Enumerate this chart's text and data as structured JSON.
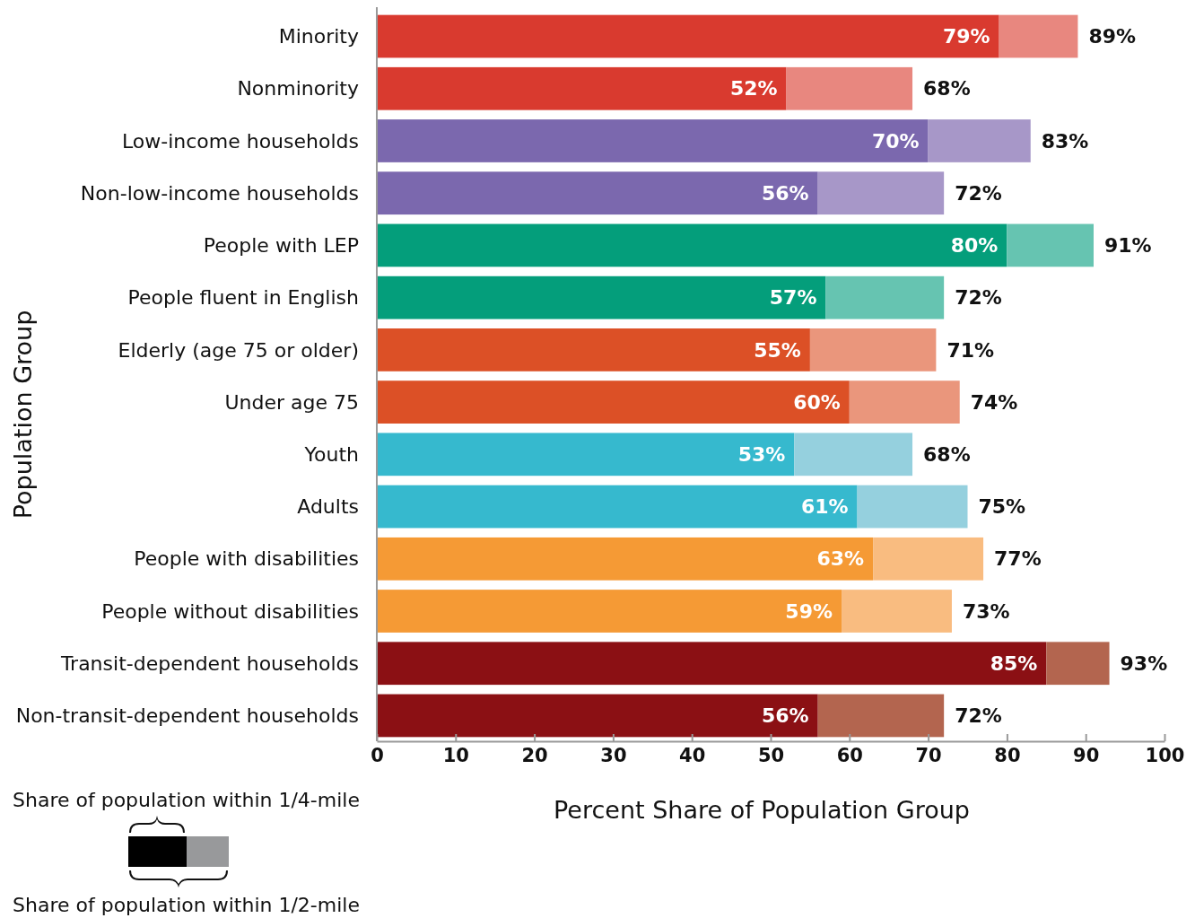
{
  "chart_data": {
    "type": "bar",
    "orientation": "horizontal",
    "stacked": true,
    "categories": [
      "Minority",
      "Nonminority",
      "Low-income households",
      "Non-low-income households",
      "People with LEP",
      "People fluent in English",
      "Elderly (age 75 or older)",
      "Under age 75",
      "Youth",
      "Adults",
      "People with disabilities",
      "People without disabilities",
      "Transit-dependent households",
      "Non-transit-dependent households"
    ],
    "series": [
      {
        "values": [
          79,
          52,
          70,
          56,
          80,
          57,
          55,
          60,
          53,
          61,
          63,
          59,
          85,
          56
        ],
        "colors": [
          "#d93a2f",
          "#d93a2f",
          "#7b68ae",
          "#7b68ae",
          "#049e7b",
          "#049e7b",
          "#dc5026",
          "#dc5026",
          "#36b9ce",
          "#36b9ce",
          "#f59a35",
          "#f59a35",
          "#8b1014",
          "#8b1014"
        ],
        "value_labels": [
          "79%",
          "52%",
          "70%",
          "56%",
          "80%",
          "57%",
          "55%",
          "60%",
          "53%",
          "61%",
          "63%",
          "59%",
          "85%",
          "56%"
        ]
      },
      {
        "values": [
          10,
          16,
          13,
          16,
          11,
          15,
          16,
          14,
          15,
          14,
          14,
          14,
          8,
          16
        ],
        "colors": [
          "#e8877f",
          "#e8877f",
          "#a797c8",
          "#a797c8",
          "#66c4b1",
          "#66c4b1",
          "#ea967c",
          "#ea967c",
          "#95d0de",
          "#95d0de",
          "#f9bc80",
          "#f9bc80",
          "#b3654f",
          "#b3654f"
        ]
      }
    ],
    "totals": [
      "89%",
      "68%",
      "83%",
      "72%",
      "91%",
      "72%",
      "71%",
      "74%",
      "68%",
      "75%",
      "77%",
      "73%",
      "93%",
      "72%"
    ],
    "xlim": [
      0,
      100
    ],
    "xticks": [
      0,
      10,
      20,
      30,
      40,
      50,
      60,
      70,
      80,
      90,
      100
    ],
    "xlabel": "Percent Share of Population Group",
    "ylabel": "Population Group",
    "annotations": [
      "Share of population within 1/4-mile",
      "Share of population within 1/2-mile"
    ],
    "grid": false
  }
}
